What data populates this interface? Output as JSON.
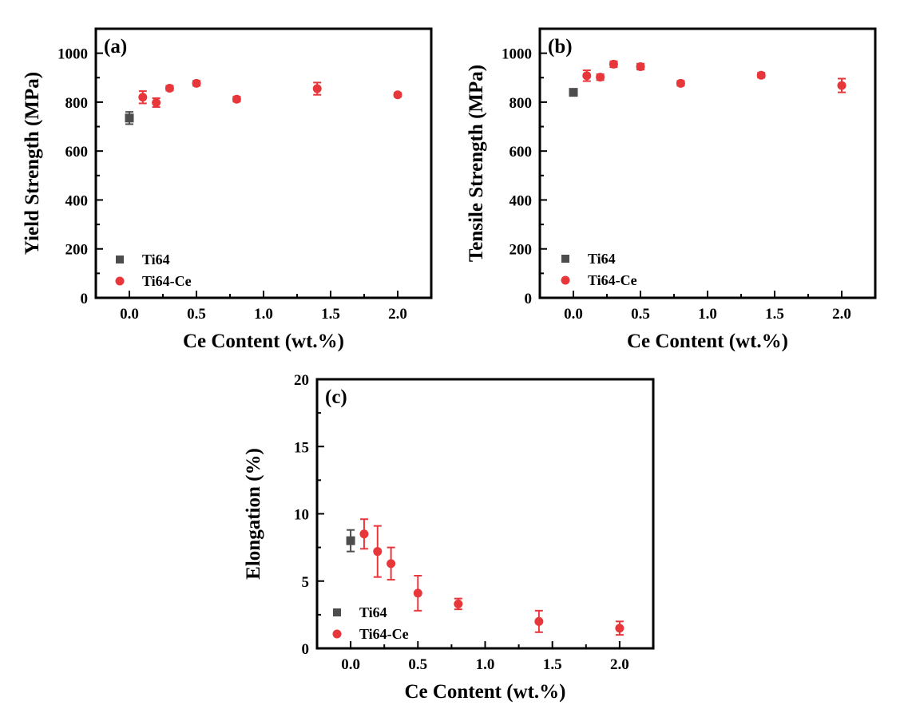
{
  "chart_data": [
    {
      "type": "scatter",
      "panel_label": "(a)",
      "xlabel": "Ce Content (wt.%)",
      "ylabel": "Yield Strength (MPa)",
      "xlim": [
        -0.25,
        2.25
      ],
      "ylim": [
        0,
        1100
      ],
      "xticks": [
        0.0,
        0.5,
        1.0,
        1.5,
        2.0
      ],
      "xtick_labels": [
        "0.0",
        "0.5",
        "1.0",
        "1.5",
        "2.0"
      ],
      "yticks": [
        0,
        200,
        400,
        600,
        800,
        1000
      ],
      "ytick_labels": [
        "0",
        "200",
        "400",
        "600",
        "800",
        "1000"
      ],
      "legend_position": "bottom-left",
      "series": [
        {
          "name": "Ti64",
          "marker": "square",
          "color": "#4d4d4d",
          "x": [
            0.0
          ],
          "y": [
            735
          ],
          "err": [
            25
          ]
        },
        {
          "name": "Ti64-Ce",
          "marker": "circle",
          "color": "#e8373b",
          "x": [
            0.1,
            0.2,
            0.3,
            0.5,
            0.8,
            1.4,
            2.0
          ],
          "y": [
            820,
            798,
            857,
            877,
            812,
            855,
            830
          ],
          "err": [
            25,
            18,
            10,
            10,
            10,
            25,
            8
          ]
        }
      ]
    },
    {
      "type": "scatter",
      "panel_label": "(b)",
      "xlabel": "Ce Content (wt.%)",
      "ylabel": "Tensile Strength (MPa)",
      "xlim": [
        -0.25,
        2.25
      ],
      "ylim": [
        0,
        1100
      ],
      "xticks": [
        0.0,
        0.5,
        1.0,
        1.5,
        2.0
      ],
      "xtick_labels": [
        "0.0",
        "0.5",
        "1.0",
        "1.5",
        "2.0"
      ],
      "yticks": [
        0,
        200,
        400,
        600,
        800,
        1000
      ],
      "ytick_labels": [
        "0",
        "200",
        "400",
        "600",
        "800",
        "1000"
      ],
      "legend_position": "bottom-left",
      "series": [
        {
          "name": "Ti64",
          "marker": "square",
          "color": "#4d4d4d",
          "x": [
            0.0
          ],
          "y": [
            840
          ],
          "err": [
            10
          ]
        },
        {
          "name": "Ti64-Ce",
          "marker": "circle",
          "color": "#e8373b",
          "x": [
            0.1,
            0.2,
            0.3,
            0.5,
            0.8,
            1.4,
            2.0
          ],
          "y": [
            908,
            902,
            955,
            945,
            877,
            910,
            868
          ],
          "err": [
            22,
            12,
            12,
            12,
            10,
            10,
            28
          ]
        }
      ]
    },
    {
      "type": "scatter",
      "panel_label": "(c)",
      "xlabel": "Ce Content (wt.%)",
      "ylabel": "Elongation (%)",
      "xlim": [
        -0.25,
        2.25
      ],
      "ylim": [
        0,
        20
      ],
      "xticks": [
        0.0,
        0.5,
        1.0,
        1.5,
        2.0
      ],
      "xtick_labels": [
        "0.0",
        "0.5",
        "1.0",
        "1.5",
        "2.0"
      ],
      "yticks": [
        0,
        5,
        10,
        15,
        20
      ],
      "ytick_labels": [
        "0",
        "5",
        "10",
        "15",
        "20"
      ],
      "legend_position": "bottom-left",
      "series": [
        {
          "name": "Ti64",
          "marker": "square",
          "color": "#4d4d4d",
          "x": [
            0.0
          ],
          "y": [
            8.0
          ],
          "err": [
            0.8
          ]
        },
        {
          "name": "Ti64-Ce",
          "marker": "circle",
          "color": "#e8373b",
          "x": [
            0.1,
            0.2,
            0.3,
            0.5,
            0.8,
            1.4,
            2.0
          ],
          "y": [
            8.5,
            7.2,
            6.3,
            4.1,
            3.3,
            2.0,
            1.5
          ],
          "err": [
            1.1,
            1.9,
            1.2,
            1.3,
            0.4,
            0.8,
            0.5
          ]
        }
      ]
    }
  ]
}
